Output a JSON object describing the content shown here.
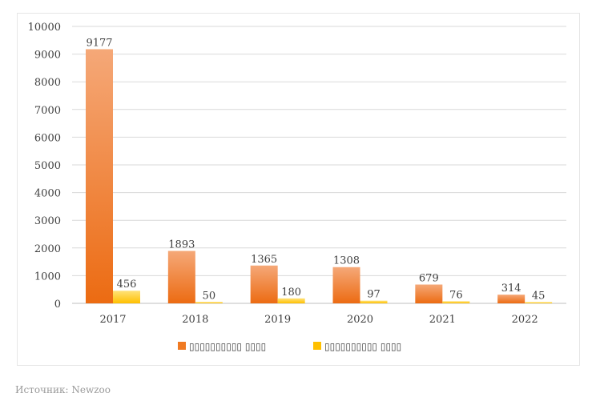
{
  "chart_data": {
    "type": "bar",
    "title": "",
    "xlabel": "",
    "ylabel": "",
    "categories": [
      "2017",
      "2018",
      "2019",
      "2020",
      "2021",
      "2022"
    ],
    "series": [
      {
        "name": "▯▯▯▯▯▯▯▯▯▯ ▯▯▯▯",
        "values": [
          9177,
          1893,
          1365,
          1308,
          679,
          314
        ],
        "color": "#f07a22",
        "color_light": "#f5a878"
      },
      {
        "name": "▯▯▯▯▯▯▯▯▯▯ ▯▯▯▯",
        "values": [
          456,
          50,
          180,
          97,
          76,
          45
        ],
        "color": "#ffc000",
        "color_light": "#ffe27a"
      }
    ],
    "ylim": [
      0,
      10000
    ],
    "yticks": [
      0,
      1000,
      2000,
      3000,
      4000,
      5000,
      6000,
      7000,
      8000,
      9000,
      10000
    ],
    "grid": true,
    "legend_position": "bottom"
  },
  "colors": {
    "grid": "#d9d9d9",
    "axis": "#bfbfbf",
    "text": "#404040",
    "source_text": "#9a9a9a"
  },
  "source": "Источник: Newzoo"
}
